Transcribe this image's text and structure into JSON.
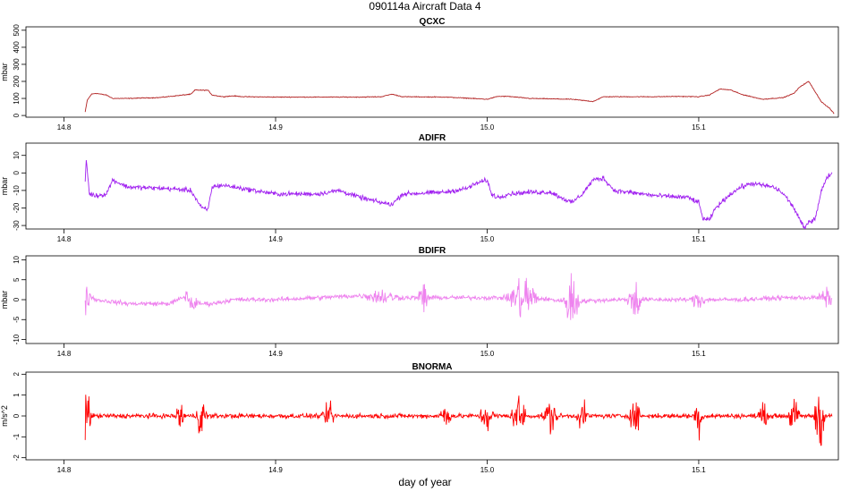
{
  "figure": {
    "title": "090114a   Aircraft Data 4",
    "xlabel": "day of year"
  },
  "chart_data": [
    {
      "type": "line",
      "title": "QCXC",
      "ylabel": "mbar",
      "color": "#b22222",
      "xlim": [
        14.782,
        15.166
      ],
      "ylim": [
        -10,
        520
      ],
      "xticks": [
        14.8,
        14.9,
        15.0,
        15.1
      ],
      "xtick_labels": [
        "14.8",
        "14.9",
        "15.0",
        "15.1"
      ],
      "yticks": [
        0,
        100,
        200,
        300,
        400,
        500
      ],
      "ytick_labels": [
        "0",
        "100",
        "200",
        "300",
        "400",
        "500"
      ],
      "noise": 2,
      "x": [
        14.81,
        14.811,
        14.813,
        14.815,
        14.82,
        14.823,
        14.83,
        14.845,
        14.86,
        14.862,
        14.865,
        14.868,
        14.87,
        14.875,
        14.88,
        14.885,
        14.9,
        14.92,
        14.94,
        14.95,
        14.955,
        14.96,
        14.98,
        14.99,
        15.0,
        15.005,
        15.01,
        15.02,
        15.04,
        15.05,
        15.055,
        15.06,
        15.08,
        15.09,
        15.1,
        15.105,
        15.11,
        15.115,
        15.12,
        15.13,
        15.14,
        15.145,
        15.148,
        15.152,
        15.155,
        15.158,
        15.162,
        15.164
      ],
      "y": [
        20,
        90,
        125,
        130,
        120,
        100,
        100,
        105,
        125,
        150,
        148,
        148,
        120,
        110,
        115,
        110,
        108,
        108,
        108,
        110,
        125,
        110,
        108,
        102,
        95,
        112,
        112,
        100,
        95,
        82,
        110,
        110,
        110,
        112,
        110,
        120,
        155,
        150,
        125,
        95,
        105,
        130,
        170,
        200,
        140,
        80,
        40,
        10
      ]
    },
    {
      "type": "line",
      "title": "ADIFR",
      "ylabel": "mbar",
      "color": "#a020f0",
      "xlim": [
        14.782,
        15.166
      ],
      "ylim": [
        -32,
        17
      ],
      "xticks": [
        14.8,
        14.9,
        15.0,
        15.1
      ],
      "xtick_labels": [
        "14.8",
        "14.9",
        "15.0",
        "15.1"
      ],
      "yticks": [
        -30,
        -20,
        -10,
        0,
        10
      ],
      "ytick_labels": [
        "-30",
        "-20",
        "-10",
        "0",
        "10"
      ],
      "noise": 1.2,
      "x": [
        14.81,
        14.8105,
        14.812,
        14.815,
        14.82,
        14.823,
        14.83,
        14.85,
        14.86,
        14.865,
        14.868,
        14.87,
        14.875,
        14.88,
        14.89,
        14.9,
        14.92,
        14.93,
        14.94,
        14.95,
        14.955,
        14.96,
        14.98,
        14.99,
        14.995,
        15.0,
        15.002,
        15.005,
        15.01,
        15.02,
        15.03,
        15.04,
        15.045,
        15.05,
        15.055,
        15.06,
        15.08,
        15.095,
        15.1,
        15.102,
        15.105,
        15.108,
        15.115,
        15.12,
        15.125,
        15.13,
        15.135,
        15.138,
        15.14,
        15.142,
        15.145,
        15.15,
        15.152,
        15.155,
        15.158,
        15.161,
        15.163
      ],
      "y": [
        -5,
        8,
        -12,
        -13,
        -12,
        -4,
        -8,
        -9,
        -10,
        -20,
        -21,
        -8,
        -7,
        -8,
        -10,
        -12,
        -12,
        -10,
        -14,
        -17,
        -18,
        -12,
        -11,
        -9,
        -6,
        -4,
        -12,
        -14,
        -12,
        -11,
        -11,
        -17,
        -12,
        -4,
        -3,
        -10,
        -13,
        -14,
        -17,
        -26,
        -27,
        -20,
        -12,
        -8,
        -6,
        -7,
        -8,
        -10,
        -12,
        -15,
        -20,
        -32,
        -28,
        -26,
        -10,
        -2,
        0
      ]
    },
    {
      "type": "line",
      "title": "BDIFR",
      "ylabel": "mbar",
      "color": "#ee82ee",
      "xlim": [
        14.782,
        15.166
      ],
      "ylim": [
        -11,
        11
      ],
      "xticks": [
        14.8,
        14.9,
        15.0,
        15.1
      ],
      "xtick_labels": [
        "14.8",
        "14.9",
        "15.0",
        "15.1"
      ],
      "yticks": [
        -10,
        -5,
        0,
        5,
        10
      ],
      "ytick_labels": [
        "-10",
        "-5",
        "0",
        "5",
        "10"
      ],
      "noise": 0.5,
      "x": [
        14.81,
        14.812,
        14.815,
        14.83,
        14.85,
        14.858,
        14.86,
        14.87,
        14.88,
        14.9,
        14.92,
        14.94,
        14.96,
        14.98,
        15.0,
        15.02,
        15.04,
        15.06,
        15.08,
        15.1,
        15.12,
        15.14,
        15.16,
        15.163
      ],
      "y": [
        0,
        1,
        0,
        -1,
        -1,
        1,
        -1,
        -1,
        0,
        0,
        0.5,
        1,
        0.5,
        0.5,
        0.5,
        0.5,
        -0.5,
        0,
        0,
        0,
        0,
        0.5,
        0.5,
        0
      ],
      "bursts": [
        [
          14.81,
          0.003,
          4
        ],
        [
          14.86,
          0.004,
          2
        ],
        [
          14.95,
          0.01,
          1.5
        ],
        [
          14.97,
          0.003,
          4
        ],
        [
          15.017,
          0.008,
          6
        ],
        [
          15.04,
          0.004,
          8
        ],
        [
          15.07,
          0.004,
          5
        ],
        [
          15.1,
          0.004,
          2
        ],
        [
          15.16,
          0.004,
          2
        ]
      ]
    },
    {
      "type": "line",
      "title": "BNORMA",
      "ylabel": "m/s^2",
      "color": "#ff0000",
      "xlim": [
        14.782,
        15.166
      ],
      "ylim": [
        -2.1,
        2.1
      ],
      "xticks": [
        14.8,
        14.9,
        15.0,
        15.1
      ],
      "xtick_labels": [
        "14.8",
        "14.9",
        "15.0",
        "15.1"
      ],
      "yticks": [
        -2,
        -1,
        0,
        1,
        2
      ],
      "ytick_labels": [
        "-2",
        "-1",
        "0",
        "1",
        "2"
      ],
      "noise": 0.1,
      "x": [
        14.81,
        15.163
      ],
      "y": [
        0,
        0
      ],
      "bursts": [
        [
          14.81,
          0.003,
          2
        ],
        [
          14.855,
          0.003,
          0.6
        ],
        [
          14.865,
          0.003,
          0.9
        ],
        [
          14.925,
          0.003,
          0.8
        ],
        [
          14.98,
          0.003,
          0.7
        ],
        [
          15.0,
          0.004,
          0.7
        ],
        [
          15.015,
          0.004,
          1.0
        ],
        [
          15.03,
          0.004,
          0.8
        ],
        [
          15.045,
          0.003,
          0.6
        ],
        [
          15.07,
          0.003,
          0.9
        ],
        [
          15.1,
          0.003,
          0.8
        ],
        [
          15.13,
          0.003,
          0.6
        ],
        [
          15.145,
          0.003,
          0.8
        ],
        [
          15.157,
          0.003,
          1.8
        ]
      ]
    }
  ]
}
